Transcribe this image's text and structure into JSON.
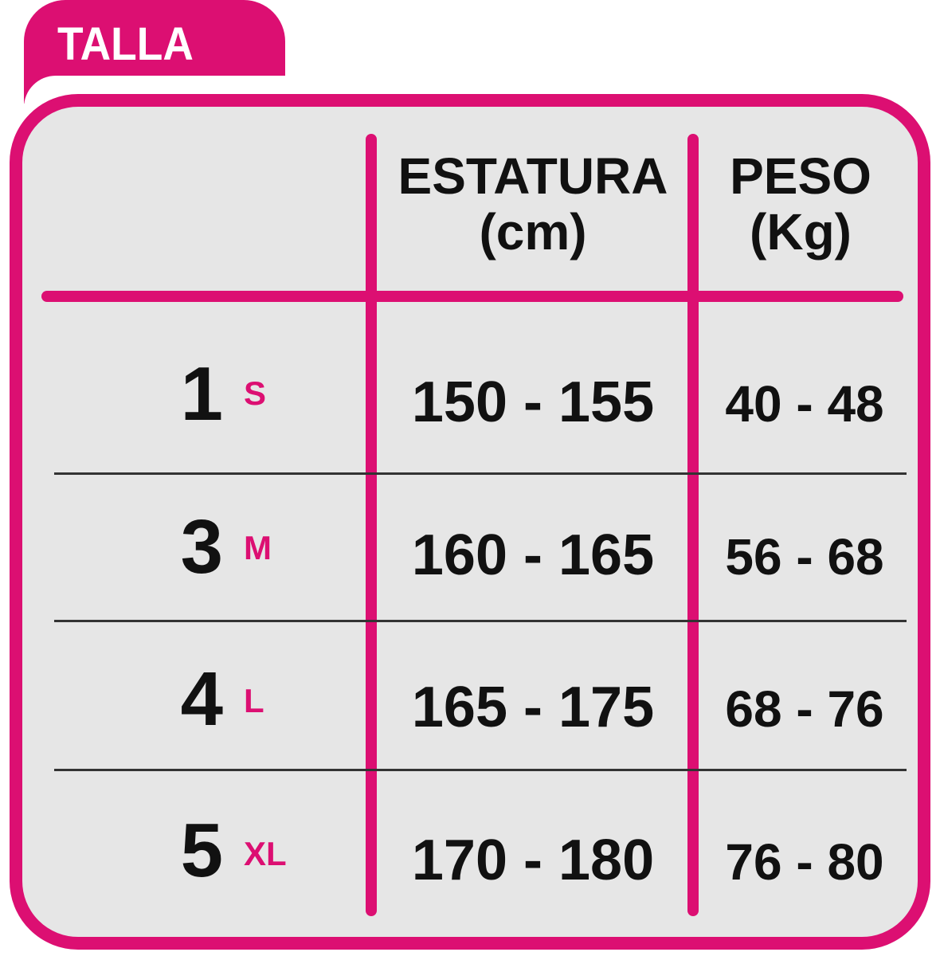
{
  "title": "TALLA",
  "headers": {
    "estatura": "ESTATURA",
    "estatura_unit": "(cm)",
    "peso": "PESO",
    "peso_unit": "(Kg)"
  },
  "rows": [
    {
      "talla": "1",
      "size": "S",
      "estatura": "150 - 155",
      "peso": "40 - 48"
    },
    {
      "talla": "3",
      "size": "M",
      "estatura": "160 - 165",
      "peso": "56 - 68"
    },
    {
      "talla": "4",
      "size": "L",
      "estatura": "165 - 175",
      "peso": "68 - 76"
    },
    {
      "talla": "5",
      "size": "XL",
      "estatura": "170 - 180",
      "peso": "76 - 80"
    }
  ],
  "colors": {
    "accent": "#dc0f72",
    "background": "#e6e6e6",
    "text": "#111111"
  }
}
